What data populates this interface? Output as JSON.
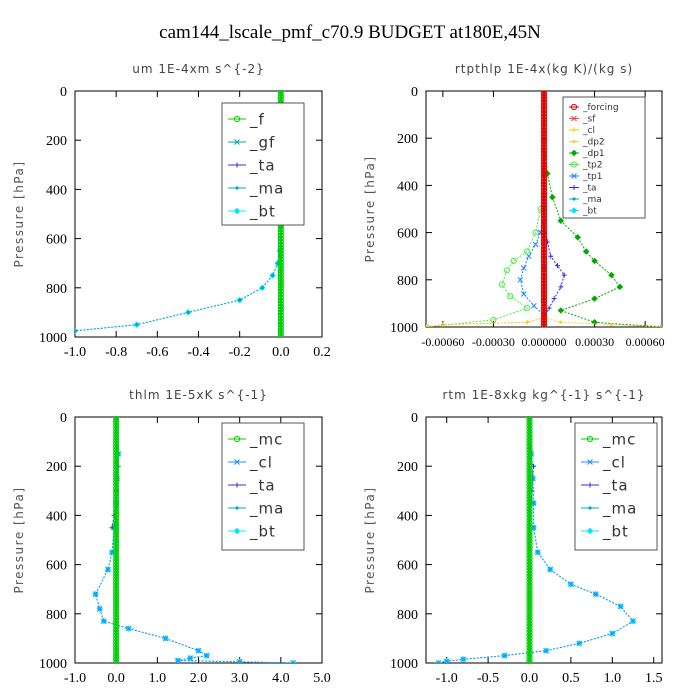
{
  "figure": {
    "title": "cam144_lscale_pmf_c70.9  BUDGET at180E,45N"
  },
  "colors": {
    "f": "#00d000",
    "gf": "#00aaaa",
    "ta": "#3030e0",
    "ma": "#00a8c8",
    "bt": "#00e8ff",
    "mc": "#00d000",
    "cl": "#1e90ff",
    "forcing": "#e00000",
    "sf": "#ff4040",
    "cl_orange": "#ffc000",
    "dp2": "#ffd040",
    "dp1": "#00aa00",
    "tp2": "#44ee44",
    "tp1": "#1a8aff"
  },
  "chart_data": [
    {
      "id": "um",
      "type": "line",
      "title": "um   1E-4xm s^{-2}",
      "ylabel": "Pressure [hPa]",
      "xlabel": "",
      "xlim": [
        -1.0,
        0.2
      ],
      "ylim": [
        1000,
        0
      ],
      "xticks": [
        -1.0,
        -0.8,
        -0.6,
        -0.4,
        -0.2,
        0.0,
        0.2
      ],
      "xtick_labels": [
        "-1.0",
        "-0.8",
        "-0.6",
        "-0.4",
        "-0.2",
        "0.0",
        "0.2"
      ],
      "yticks": [
        0,
        200,
        400,
        600,
        800,
        1000
      ],
      "ytick_labels": [
        "0",
        "200",
        "400",
        "600",
        "800",
        "1000"
      ],
      "legend": [
        "_f",
        "_gf",
        "_ta",
        "_ma",
        "_bt"
      ],
      "series": [
        {
          "name": "_f",
          "color_key": "f",
          "x": [
            0,
            0,
            0,
            0,
            0,
            0,
            0,
            0,
            0,
            0,
            0
          ],
          "y": [
            0,
            100,
            200,
            300,
            400,
            500,
            600,
            700,
            800,
            900,
            1000
          ]
        },
        {
          "name": "_gf",
          "color_key": "gf",
          "x": [
            0,
            0,
            0,
            0,
            0,
            0,
            0,
            0,
            0,
            0,
            0
          ],
          "y": [
            0,
            100,
            200,
            300,
            400,
            500,
            600,
            700,
            800,
            900,
            1000
          ]
        },
        {
          "name": "_ta",
          "color_key": "ta",
          "x": [
            0.002,
            0.005,
            0.006,
            0.002,
            0.0
          ],
          "y": [
            50,
            150,
            200,
            300,
            350
          ]
        },
        {
          "name": "_ma",
          "color_key": "ma",
          "x": [
            0.002,
            0.004,
            0.003,
            0.004,
            0.003,
            0.0,
            -0.005,
            -0.015,
            -0.04,
            -0.09,
            -0.2,
            -0.45,
            -0.7,
            -1.0
          ],
          "y": [
            0,
            150,
            250,
            350,
            450,
            550,
            650,
            700,
            750,
            800,
            850,
            900,
            950,
            975
          ]
        },
        {
          "name": "_bt",
          "color_key": "bt",
          "x": [
            0.002,
            0.004,
            0.003,
            0.004,
            0.003,
            0.0,
            -0.005,
            -0.015,
            -0.04,
            -0.09,
            -0.2,
            -0.45,
            -0.7,
            -1.0
          ],
          "y": [
            0,
            150,
            250,
            350,
            450,
            550,
            650,
            700,
            750,
            800,
            850,
            900,
            950,
            975
          ]
        }
      ]
    },
    {
      "id": "rtpthlp",
      "type": "line",
      "title": "rtpthlp   1E-4x(kg K)/(kg s)",
      "ylabel": "Pressure [hPa]",
      "xlabel": "",
      "xlim": [
        -0.0007,
        0.0007
      ],
      "ylim": [
        1000,
        0
      ],
      "xticks": [
        -0.0006,
        -0.0003,
        0.0,
        0.0003,
        0.0006
      ],
      "xtick_labels": [
        "-0.00060",
        "-0.00030",
        "0.000000",
        "0.00030",
        "0.00060"
      ],
      "yticks": [
        0,
        200,
        400,
        600,
        800,
        1000
      ],
      "ytick_labels": [
        "0",
        "200",
        "400",
        "600",
        "800",
        "1000"
      ],
      "legend": [
        "_forcing",
        "_sf",
        "_cl",
        "_dp2",
        "_dp1",
        "_tp2",
        "_tp1",
        "_ta",
        "_ma",
        "_bt"
      ],
      "series": [
        {
          "name": "_forcing",
          "color_key": "forcing",
          "x": [
            0,
            0,
            0,
            0,
            0,
            0,
            0,
            0,
            0,
            0,
            0
          ],
          "y": [
            0,
            100,
            200,
            300,
            400,
            500,
            600,
            700,
            800,
            900,
            1000
          ]
        },
        {
          "name": "_sf",
          "color_key": "sf",
          "x": [
            0,
            0,
            0,
            0,
            0,
            0,
            0,
            0,
            0,
            0,
            0
          ],
          "y": [
            0,
            100,
            200,
            300,
            400,
            500,
            600,
            700,
            800,
            900,
            1000
          ]
        },
        {
          "name": "_cl",
          "color_key": "cl_orange",
          "x": [
            0,
            -0.0001,
            -0.0006,
            -0.0007
          ],
          "y": [
            960,
            980,
            990,
            1000
          ]
        },
        {
          "name": "_dp2",
          "color_key": "dp2",
          "x": [
            0,
            0.0001,
            0.0004,
            0.0007
          ],
          "y": [
            960,
            980,
            990,
            1000
          ]
        },
        {
          "name": "_dp1",
          "color_key": "dp1",
          "x": [
            0,
            2e-05,
            5e-05,
            0.0001,
            0.0002,
            0.00025,
            0.0003,
            0.0004,
            0.00045,
            0.0003,
            0.0001,
            0.0003,
            0.0007
          ],
          "y": [
            200,
            350,
            450,
            550,
            620,
            680,
            720,
            780,
            830,
            880,
            930,
            980,
            1000
          ]
        },
        {
          "name": "_tp2",
          "color_key": "tp2",
          "x": [
            0,
            -2e-05,
            -5e-05,
            -0.0001,
            -0.00018,
            -0.00022,
            -0.00025,
            -0.0002,
            -0.0001,
            -0.0003,
            -0.0007
          ],
          "y": [
            350,
            500,
            600,
            680,
            720,
            760,
            820,
            870,
            920,
            970,
            1000
          ]
        },
        {
          "name": "_tp1",
          "color_key": "tp1",
          "x": [
            0,
            -2e-05,
            -5e-05,
            -9e-05,
            -0.00012,
            -0.00014,
            -0.00012,
            -6e-05,
            0.0
          ],
          "y": [
            500,
            600,
            650,
            700,
            750,
            800,
            860,
            910,
            950
          ]
        },
        {
          "name": "_ta",
          "color_key": "ta",
          "x": [
            0,
            2e-05,
            4e-05,
            8e-05,
            0.00012,
            0.0001,
            6e-05,
            3e-05,
            0.0
          ],
          "y": [
            550,
            640,
            700,
            740,
            780,
            830,
            880,
            920,
            960
          ]
        },
        {
          "name": "_ma",
          "color_key": "ma",
          "x": [
            0,
            0,
            0,
            0,
            0
          ],
          "y": [
            0,
            250,
            500,
            750,
            1000
          ]
        },
        {
          "name": "_bt",
          "color_key": "bt",
          "x": [
            0,
            0,
            0,
            0,
            0
          ],
          "y": [
            0,
            250,
            500,
            750,
            1000
          ]
        }
      ]
    },
    {
      "id": "thlm",
      "type": "line",
      "title": "thlm   1E-5xK s^{-1}",
      "ylabel": "Pressure [hPa]",
      "xlabel": "",
      "xlim": [
        -1.0,
        5.0
      ],
      "ylim": [
        1000,
        0
      ],
      "xticks": [
        -1.0,
        0.0,
        1.0,
        2.0,
        3.0,
        4.0,
        5.0
      ],
      "xtick_labels": [
        "-1.0",
        "0.0",
        "1.0",
        "2.0",
        "3.0",
        "4.0",
        "5.0"
      ],
      "yticks": [
        0,
        200,
        400,
        600,
        800,
        1000
      ],
      "ytick_labels": [
        "0",
        "200",
        "400",
        "600",
        "800",
        "1000"
      ],
      "legend": [
        "_mc",
        "_cl",
        "_ta",
        "_ma",
        "_bt"
      ],
      "series": [
        {
          "name": "_mc",
          "color_key": "mc",
          "x": [
            0,
            0,
            0,
            0,
            0,
            0,
            0,
            0,
            0,
            0,
            0
          ],
          "y": [
            0,
            100,
            200,
            300,
            400,
            500,
            600,
            700,
            800,
            900,
            1000
          ]
        },
        {
          "name": "_cl",
          "color_key": "cl",
          "x": [
            0,
            0.05,
            0.02,
            0.0,
            -0.05,
            -0.1,
            -0.2,
            -0.5,
            -0.4,
            -0.3,
            0.3,
            1.2,
            2.0,
            2.2,
            1.8,
            1.5,
            3.0,
            4.3
          ],
          "y": [
            0,
            150,
            250,
            350,
            450,
            550,
            620,
            720,
            780,
            830,
            860,
            900,
            950,
            970,
            980,
            990,
            995,
            1000
          ]
        },
        {
          "name": "_ta",
          "color_key": "ta",
          "x": [
            0,
            0.05,
            0.0,
            -0.05,
            -0.1
          ],
          "y": [
            150,
            200,
            300,
            400,
            450
          ]
        },
        {
          "name": "_ma",
          "color_key": "ma",
          "x": [
            0,
            0,
            0,
            0,
            0,
            0,
            0,
            0,
            0,
            0,
            0
          ],
          "y": [
            0,
            100,
            200,
            300,
            400,
            500,
            600,
            700,
            800,
            900,
            1000
          ]
        },
        {
          "name": "_bt",
          "color_key": "bt",
          "x": [
            0,
            0.05,
            0.02,
            0.0,
            -0.05,
            -0.1,
            -0.2,
            -0.5,
            -0.4,
            -0.3,
            0.3,
            1.2,
            2.0,
            2.2,
            1.8,
            1.5,
            3.0,
            4.3
          ],
          "y": [
            0,
            150,
            250,
            350,
            450,
            550,
            620,
            720,
            780,
            830,
            860,
            900,
            950,
            970,
            980,
            990,
            995,
            1000
          ]
        }
      ]
    },
    {
      "id": "rtm",
      "type": "line",
      "title": "rtm   1E-8xkg kg^{-1} s^{-1}",
      "ylabel": "Pressure [hPa]",
      "xlabel": "",
      "xlim": [
        -1.25,
        1.6
      ],
      "ylim": [
        1000,
        0
      ],
      "xticks": [
        -1.0,
        -0.5,
        0.0,
        0.5,
        1.0,
        1.5
      ],
      "xtick_labels": [
        "-1.0",
        "-0.5",
        "0.0",
        "0.5",
        "1.0",
        "1.5"
      ],
      "yticks": [
        0,
        200,
        400,
        600,
        800,
        1000
      ],
      "ytick_labels": [
        "0",
        "200",
        "400",
        "600",
        "800",
        "1000"
      ],
      "legend": [
        "_mc",
        "_cl",
        "_ta",
        "_ma",
        "_bt"
      ],
      "series": [
        {
          "name": "_mc",
          "color_key": "mc",
          "x": [
            0,
            0,
            0,
            0,
            0,
            0,
            0,
            0,
            0,
            0,
            0
          ],
          "y": [
            0,
            100,
            200,
            300,
            400,
            500,
            600,
            700,
            800,
            900,
            1000
          ]
        },
        {
          "name": "_cl",
          "color_key": "cl",
          "x": [
            0,
            0.02,
            0.04,
            0.05,
            0.05,
            0.1,
            0.25,
            0.5,
            0.8,
            1.1,
            1.25,
            1.0,
            0.6,
            0.2,
            -0.3,
            -0.8,
            -1.0,
            -1.1
          ],
          "y": [
            0,
            150,
            250,
            350,
            450,
            550,
            620,
            680,
            720,
            770,
            830,
            880,
            920,
            950,
            970,
            985,
            993,
            1000
          ]
        },
        {
          "name": "_ta",
          "color_key": "ta",
          "x": [
            0,
            0.05,
            0.03,
            0.0
          ],
          "y": [
            150,
            200,
            300,
            400
          ]
        },
        {
          "name": "_ma",
          "color_key": "ma",
          "x": [
            0,
            0,
            0,
            0,
            0,
            0,
            0,
            0,
            0,
            0,
            0
          ],
          "y": [
            0,
            100,
            200,
            300,
            400,
            500,
            600,
            700,
            800,
            900,
            1000
          ]
        },
        {
          "name": "_bt",
          "color_key": "bt",
          "x": [
            0,
            0.02,
            0.04,
            0.05,
            0.05,
            0.1,
            0.25,
            0.5,
            0.8,
            1.1,
            1.25,
            1.0,
            0.6,
            0.2,
            -0.3,
            -0.8,
            -1.0,
            -1.1
          ],
          "y": [
            0,
            150,
            250,
            350,
            450,
            550,
            620,
            680,
            720,
            770,
            830,
            880,
            920,
            950,
            970,
            985,
            993,
            1000
          ]
        }
      ]
    }
  ]
}
